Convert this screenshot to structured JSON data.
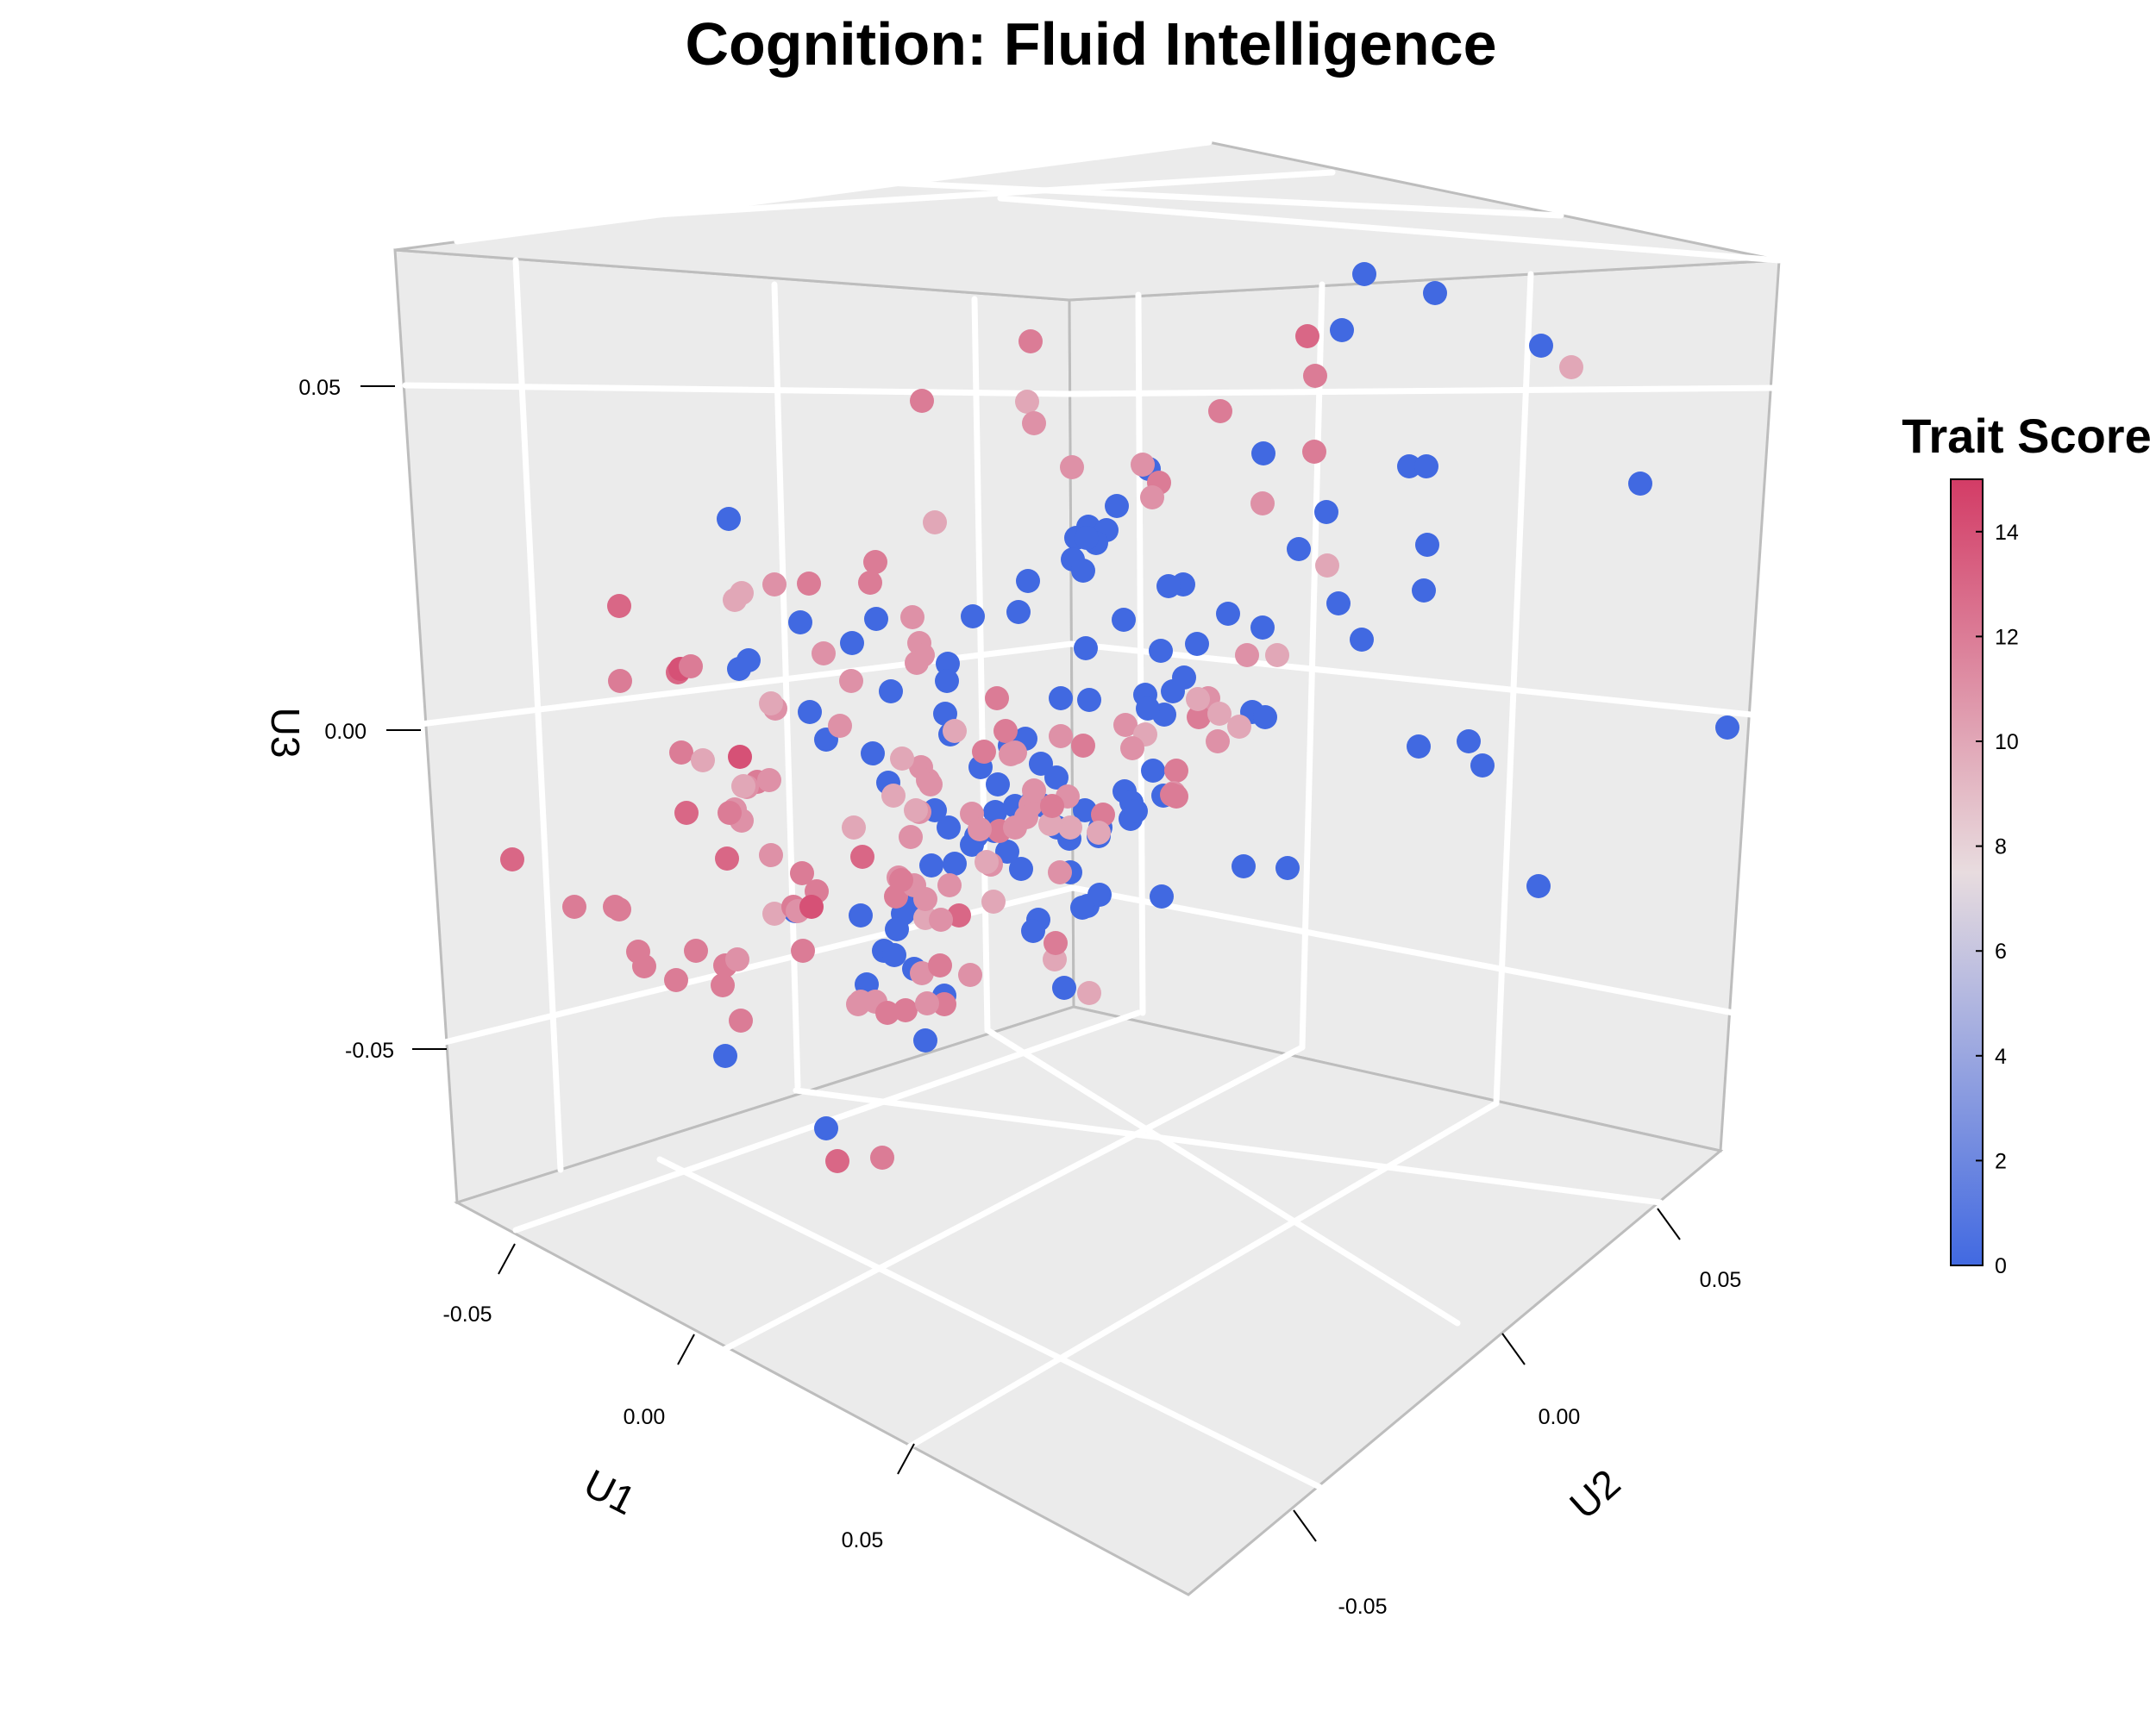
{
  "chart_data": {
    "type": "scatter",
    "subtype": "3d-scatter",
    "title": "Cognition: Fluid Intelligence",
    "axes": {
      "x": {
        "label": "U1",
        "ticks": [
          "-0.05",
          "0.00",
          "0.05"
        ]
      },
      "y": {
        "label": "U2",
        "ticks": [
          "-0.05",
          "0.00",
          "0.05"
        ]
      },
      "z": {
        "label": "U3",
        "ticks": [
          "-0.05",
          "0.00",
          "0.05"
        ]
      }
    },
    "grid": true,
    "colorbar": {
      "title": "Trait Score",
      "range": [
        0,
        15
      ],
      "ticks": [
        "0",
        "2",
        "4",
        "6",
        "8",
        "10",
        "12",
        "14"
      ],
      "tick_values": [
        0,
        2,
        4,
        6,
        8,
        10,
        12,
        14
      ],
      "low_color": "#4169e1",
      "mid_color": "#e8dcdf",
      "high_color": "#d33c66"
    },
    "points_screen": [
      [
        1582,
        318,
        0
      ],
      [
        1664,
        340,
        0
      ],
      [
        1556,
        383,
        0
      ],
      [
        1787,
        401,
        0
      ],
      [
        1902,
        561,
        0
      ],
      [
        2003,
        844,
        0
      ],
      [
        1465,
        526,
        0
      ],
      [
        1634,
        541,
        0
      ],
      [
        1654,
        541,
        0
      ],
      [
        1332,
        544,
        0
      ],
      [
        1538,
        594,
        0
      ],
      [
        1295,
        587,
        0
      ],
      [
        1248,
        624,
        0
      ],
      [
        1262,
        611,
        0
      ],
      [
        1655,
        632,
        0
      ],
      [
        1506,
        637,
        0
      ],
      [
        1651,
        685,
        0
      ],
      [
        1552,
        700,
        0
      ],
      [
        1372,
        678,
        0
      ],
      [
        1579,
        742,
        0
      ],
      [
        1424,
        712,
        0
      ],
      [
        1464,
        728,
        0
      ],
      [
        1355,
        680,
        0
      ],
      [
        845,
        602,
        0
      ],
      [
        928,
        722,
        0
      ],
      [
        868,
        766,
        0
      ],
      [
        1016,
        718,
        0
      ],
      [
        1099,
        770,
        0
      ],
      [
        1098,
        790,
        0
      ],
      [
        1096,
        828,
        0
      ],
      [
        1102,
        852,
        0
      ],
      [
        1033,
        802,
        0
      ],
      [
        1012,
        874,
        0
      ],
      [
        958,
        858,
        0
      ],
      [
        1030,
        908,
        0
      ],
      [
        1084,
        940,
        0
      ],
      [
        1100,
        960,
        0
      ],
      [
        1137,
        890,
        0
      ],
      [
        1171,
        865,
        0
      ],
      [
        1189,
        857,
        0
      ],
      [
        1157,
        910,
        0
      ],
      [
        1154,
        942,
        0
      ],
      [
        1168,
        988,
        0
      ],
      [
        1184,
        1008,
        0
      ],
      [
        1207,
        886,
        0
      ],
      [
        1225,
        902,
        0
      ],
      [
        1199,
        926,
        0
      ],
      [
        1208,
        934,
        0
      ],
      [
        1177,
        935,
        0
      ],
      [
        1153,
        964,
        0
      ],
      [
        1132,
        970,
        0
      ],
      [
        1127,
        980,
        0
      ],
      [
        1080,
        1004,
        0
      ],
      [
        1107,
        1002,
        0
      ],
      [
        1047,
        1060,
        0
      ],
      [
        1060,
        1048,
        0
      ],
      [
        1040,
        1078,
        0
      ],
      [
        1025,
        1103,
        0
      ],
      [
        998,
        1062,
        0
      ],
      [
        1037,
        1108,
        0
      ],
      [
        1060,
        1124,
        0
      ],
      [
        1005,
        1142,
        0
      ],
      [
        1073,
        1207,
        0
      ],
      [
        1204,
        1067,
        0
      ],
      [
        1241,
        1012,
        0
      ],
      [
        1261,
        1051,
        0
      ],
      [
        1275,
        1038,
        0
      ],
      [
        1274,
        970,
        0
      ],
      [
        1276,
        960,
        0
      ],
      [
        1311,
        950,
        0
      ],
      [
        1258,
        940,
        0
      ],
      [
        1304,
        918,
        0
      ],
      [
        1312,
        931,
        0
      ],
      [
        1337,
        894,
        0
      ],
      [
        1317,
        941,
        0
      ],
      [
        1349,
        923,
        0
      ],
      [
        1350,
        829,
        0
      ],
      [
        1328,
        806,
        0
      ],
      [
        1331,
        822,
        0
      ],
      [
        1360,
        802,
        0
      ],
      [
        1373,
        786,
        0
      ],
      [
        1388,
        747,
        0
      ],
      [
        1346,
        755,
        0
      ],
      [
        1303,
        719,
        0
      ],
      [
        1259,
        752,
        0
      ],
      [
        1262,
        624,
        0
      ],
      [
        1244,
        649,
        0
      ],
      [
        1256,
        662,
        0
      ],
      [
        1283,
        615,
        0
      ],
      [
        1271,
        630,
        0
      ],
      [
        1263,
        812,
        0
      ],
      [
        1230,
        810,
        0
      ],
      [
        1226,
        960,
        0
      ],
      [
        1240,
        973,
        0
      ],
      [
        1255,
        1053,
        0
      ],
      [
        1234,
        1146,
        0
      ],
      [
        1198,
        1080,
        0
      ],
      [
        1347,
        1040,
        0
      ],
      [
        1442,
        1005,
        0
      ],
      [
        1452,
        826,
        0
      ],
      [
        1467,
        832,
        0
      ],
      [
        1493,
        1007,
        0
      ],
      [
        1645,
        866,
        0
      ],
      [
        1703,
        860,
        0
      ],
      [
        1719,
        888,
        0
      ],
      [
        1784,
        1028,
        0
      ],
      [
        1095,
        1155,
        0
      ],
      [
        841,
        1225,
        0
      ],
      [
        958,
        1309,
        0
      ],
      [
        857,
        776,
        0
      ],
      [
        939,
        826,
        0
      ],
      [
        988,
        746,
        0
      ],
      [
        1260,
        624,
        0
      ],
      [
        1192,
        674,
        0
      ],
      [
        1181,
        710,
        0
      ],
      [
        1128,
        715,
        0
      ],
      [
        922,
        1057,
        0
      ],
      [
        1195,
        396,
        12
      ],
      [
        1516,
        390,
        13
      ],
      [
        1525,
        436,
        12
      ],
      [
        1822,
        426,
        10
      ],
      [
        1069,
        465,
        12
      ],
      [
        1191,
        466,
        10
      ],
      [
        1199,
        491,
        11
      ],
      [
        1415,
        477,
        12
      ],
      [
        1243,
        542,
        11
      ],
      [
        1325,
        539,
        11
      ],
      [
        1344,
        560,
        12
      ],
      [
        1336,
        577,
        11
      ],
      [
        1464,
        584,
        11
      ],
      [
        1524,
        524,
        12
      ],
      [
        1539,
        656,
        10
      ],
      [
        1084,
        606,
        10
      ],
      [
        1015,
        652,
        12
      ],
      [
        1009,
        676,
        12
      ],
      [
        1058,
        716,
        11
      ],
      [
        1066,
        746,
        11
      ],
      [
        1070,
        760,
        11
      ],
      [
        1063,
        769,
        11
      ],
      [
        1107,
        848,
        10
      ],
      [
        1156,
        810,
        12
      ],
      [
        1166,
        848,
        12
      ],
      [
        1172,
        875,
        11
      ],
      [
        1230,
        854,
        11
      ],
      [
        1256,
        865,
        12
      ],
      [
        1305,
        841,
        11
      ],
      [
        1328,
        852,
        10
      ],
      [
        1313,
        868,
        11
      ],
      [
        1364,
        894,
        12
      ],
      [
        1361,
        920,
        11
      ],
      [
        1364,
        924,
        12
      ],
      [
        1401,
        810,
        11
      ],
      [
        1390,
        832,
        12
      ],
      [
        1414,
        828,
        10
      ],
      [
        1446,
        760,
        11
      ],
      [
        1481,
        760,
        10
      ],
      [
        1437,
        843,
        10
      ],
      [
        1412,
        860,
        11
      ],
      [
        1389,
        811,
        10
      ],
      [
        1359,
        922,
        12
      ],
      [
        1279,
        945,
        12
      ],
      [
        1274,
        966,
        10
      ],
      [
        1241,
        960,
        10
      ],
      [
        1238,
        924,
        11
      ],
      [
        1195,
        934,
        11
      ],
      [
        1218,
        956,
        10
      ],
      [
        1220,
        935,
        12
      ],
      [
        1141,
        872,
        12
      ],
      [
        1177,
        873,
        11
      ],
      [
        1199,
        917,
        11
      ],
      [
        1190,
        948,
        11
      ],
      [
        1159,
        964,
        12
      ],
      [
        1068,
        890,
        11
      ],
      [
        1076,
        905,
        11
      ],
      [
        1079,
        910,
        11
      ],
      [
        1046,
        880,
        10
      ],
      [
        1036,
        923,
        10
      ],
      [
        1056,
        971,
        11
      ],
      [
        1066,
        942,
        11
      ],
      [
        1062,
        940,
        10
      ],
      [
        1073,
        1065,
        10
      ],
      [
        1042,
        1018,
        11
      ],
      [
        1039,
        1040,
        12
      ],
      [
        1060,
        1027,
        11
      ],
      [
        1069,
        1129,
        11
      ],
      [
        1149,
        1003,
        11
      ],
      [
        1127,
        944,
        11
      ],
      [
        1136,
        962,
        11
      ],
      [
        1177,
        960,
        11
      ],
      [
        1144,
        1000,
        10
      ],
      [
        1125,
        1131,
        11
      ],
      [
        1223,
        1113,
        10
      ],
      [
        1263,
        1152,
        10
      ],
      [
        990,
        960,
        10
      ],
      [
        998,
        1162,
        11
      ],
      [
        1095,
        1165,
        12
      ],
      [
        1050,
        1172,
        12
      ],
      [
        995,
        1165,
        11
      ],
      [
        718,
        703,
        13
      ],
      [
        719,
        790,
        12
      ],
      [
        786,
        780,
        13
      ],
      [
        789,
        776,
        14
      ],
      [
        801,
        773,
        12
      ],
      [
        790,
        873,
        12
      ],
      [
        858,
        878,
        14
      ],
      [
        878,
        907,
        12
      ],
      [
        866,
        913,
        11
      ],
      [
        852,
        939,
        11
      ],
      [
        860,
        952,
        11
      ],
      [
        796,
        943,
        13
      ],
      [
        846,
        943,
        12
      ],
      [
        843,
        996,
        13
      ],
      [
        841,
        1120,
        12
      ],
      [
        855,
        1113,
        11
      ],
      [
        838,
        1143,
        12
      ],
      [
        859,
        1184,
        12
      ],
      [
        898,
        1060,
        10
      ],
      [
        920,
        1052,
        12
      ],
      [
        925,
        1057,
        11
      ],
      [
        947,
        1034,
        12
      ],
      [
        941,
        1052,
        14
      ],
      [
        930,
        1013,
        12
      ],
      [
        931,
        1103,
        12
      ],
      [
        899,
        822,
        11
      ],
      [
        894,
        816,
        10
      ],
      [
        860,
        688,
        10
      ],
      [
        898,
        678,
        11
      ],
      [
        852,
        696,
        10
      ],
      [
        938,
        677,
        12
      ],
      [
        955,
        758,
        11
      ],
      [
        974,
        842,
        11
      ],
      [
        987,
        790,
        11
      ],
      [
        1090,
        1120,
        12
      ],
      [
        807,
        1103,
        12
      ],
      [
        784,
        1137,
        12
      ],
      [
        747,
        1121,
        12
      ],
      [
        740,
        1104,
        12
      ],
      [
        718,
        1055,
        12
      ],
      [
        666,
        1052,
        12
      ],
      [
        594,
        997,
        13
      ],
      [
        713,
        1052,
        12
      ],
      [
        1075,
        1164,
        11
      ],
      [
        1015,
        1162,
        11
      ],
      [
        1029,
        1175,
        12
      ],
      [
        815,
        882,
        10
      ],
      [
        862,
        912,
        10
      ],
      [
        892,
        905,
        11
      ],
      [
        1045,
        1021,
        12
      ],
      [
        971,
        1347,
        13
      ],
      [
        1023,
        1343,
        12
      ],
      [
        894,
        992,
        11
      ],
      [
        1000,
        994,
        13
      ],
      [
        1073,
        1043,
        11
      ],
      [
        1101,
        1027,
        11
      ],
      [
        1152,
        1046,
        10
      ],
      [
        1229,
        1012,
        11
      ],
      [
        1224,
        1094,
        12
      ],
      [
        1112,
        1062,
        13
      ],
      [
        1091,
        1067,
        11
      ]
    ]
  }
}
